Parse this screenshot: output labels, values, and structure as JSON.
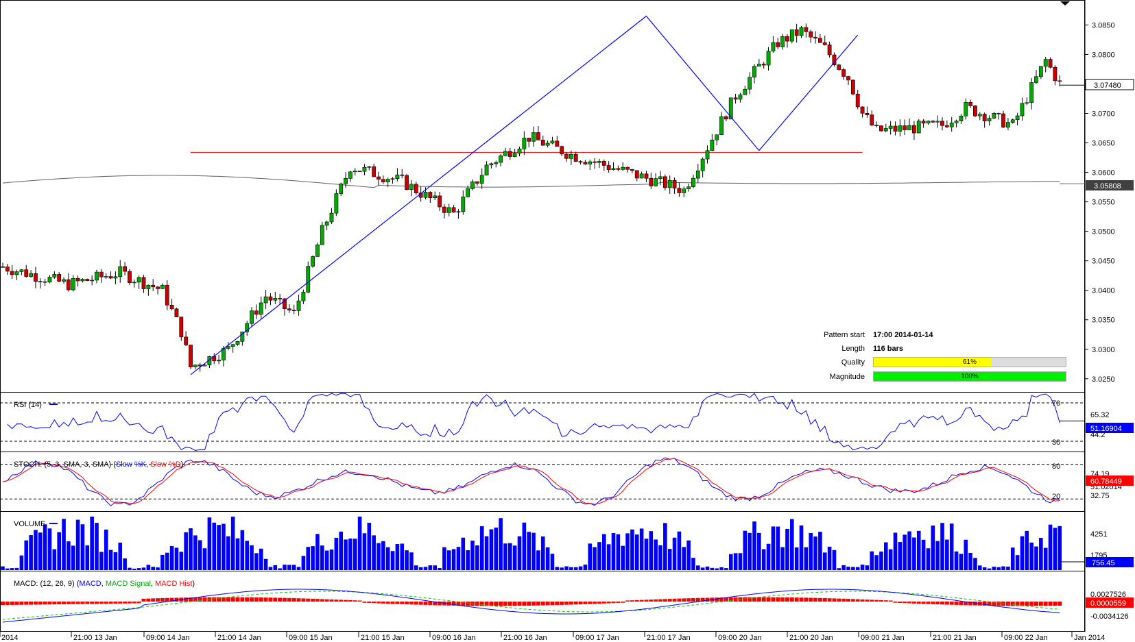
{
  "chart_data": [
    {
      "type": "candlestick",
      "price_axis": {
        "ticks": [
          "3.0850",
          "3.0800",
          "3.0750",
          "3.0700",
          "3.0650",
          "3.0600",
          "3.0550",
          "3.0500",
          "3.0450",
          "3.0400",
          "3.0350",
          "3.0300",
          "3.0250"
        ],
        "min": 3.023,
        "max": 3.089
      },
      "current_price_label": "3.07480",
      "current_price": 3.0748,
      "ma_price_label": "3.05808",
      "ma_price": 3.05808,
      "support_level": 3.0634,
      "pattern_points": [
        {
          "bar": 40,
          "price": 3.0257
        },
        {
          "bar": 137,
          "price": 3.0865
        },
        {
          "bar": 161,
          "price": 3.0637
        },
        {
          "bar": 182,
          "price": 3.0833
        }
      ],
      "pattern_info": {
        "start_label": "Pattern start",
        "start_value": "17:00 2014-01-14",
        "length_label": "Length",
        "length_value": "116 bars",
        "quality_label": "Quality",
        "quality_value": "61%",
        "quality_fraction": 0.61,
        "magnitude_label": "Magnitude",
        "magnitude_value": "100%",
        "magnitude_fraction": 1.0
      },
      "candles": []
    },
    {
      "type": "line",
      "title": "RSI (14)",
      "levels": [
        "70",
        "30"
      ],
      "axis_labels": [
        "65.32",
        "44.2"
      ],
      "current_label": "51.16904",
      "ylim": [
        20,
        80
      ]
    },
    {
      "type": "line",
      "title_prefix": "STOCH: (5, 3, SMA, 3, SMA) (",
      "series_k": "Slow %K",
      "sep": ", ",
      "series_d": "Slow %D",
      "title_suffix": ")",
      "levels": [
        "80",
        "20"
      ],
      "axis_labels": [
        "74.19",
        "32.75",
        "51.02014"
      ],
      "current_label": "60.78449",
      "ylim": [
        0,
        100
      ]
    },
    {
      "type": "bar",
      "title": "VOLUME",
      "axis_labels": [
        "4251",
        "1795"
      ],
      "current_label": "756.45"
    },
    {
      "type": "line",
      "title_prefix": "MACD: (12, 26, 9) (",
      "series_macd": "MACD",
      "series_signal": "MACD Signal",
      "series_hist": "MACD Hist",
      "title_suffix": ")",
      "axis_labels": [
        "0.0027526",
        "-0.0034126"
      ],
      "current_label": "0.0000559"
    }
  ],
  "time_axis": [
    "2014",
    "21:00 13 Jan",
    "09:00 14 Jan",
    "21:00 14 Jan",
    "09:00 15 Jan",
    "21:00 15 Jan",
    "09:00 16 Jan",
    "21:00 16 Jan",
    "09:00 17 Jan",
    "21:00 17 Jan",
    "09:00 20 Jan",
    "21:00 20 Jan",
    "09:00 21 Jan",
    "21:00 21 Jan",
    "09:00 22 Jan",
    "Jan 2014"
  ],
  "colors": {
    "bull": "#00aa00",
    "bear": "#cc0000",
    "pattern_line": "#0000ff",
    "support": "#ff0000",
    "ma": "#606060",
    "rsi": "#0000ff",
    "stoch_k": "#0000ff",
    "stoch_d": "#ff0000",
    "volume": "#0000ff",
    "macd": "#0000ff",
    "signal": "#00cc00",
    "hist": "#ff0000",
    "quality": "#ffff00",
    "magnitude": "#00ee00"
  }
}
